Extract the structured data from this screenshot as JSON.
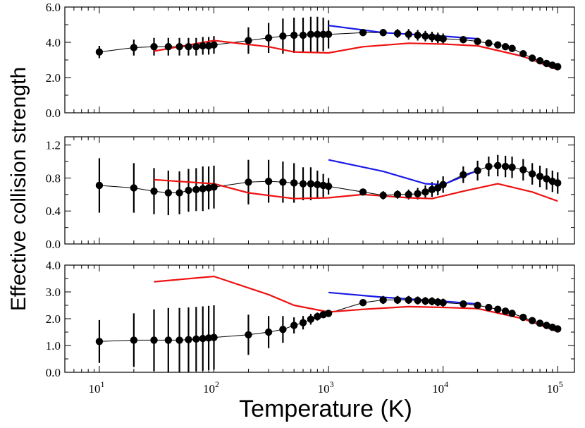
{
  "chart_data": {
    "type": "scatter",
    "shared_x": {
      "label": "Temperature (K)",
      "scale": "log",
      "range": [
        5,
        140000
      ],
      "tick_labels": [
        {
          "base": "10",
          "exp": "1",
          "value": 10
        },
        {
          "base": "10",
          "exp": "2",
          "value": 100
        },
        {
          "base": "10",
          "exp": "3",
          "value": 1000
        },
        {
          "base": "10",
          "exp": "4",
          "value": 10000
        },
        {
          "base": "10",
          "exp": "5",
          "value": 100000
        }
      ]
    },
    "shared_y_label": "Effective collision strength",
    "colors": {
      "points": "#000000",
      "red": "#ee1111",
      "blue": "#1a1ae6"
    },
    "panels": [
      {
        "name": "top",
        "ylim": [
          0,
          6
        ],
        "yticks": [
          0,
          2,
          4,
          6
        ],
        "ytick_labels": [
          "0.0",
          "2.0",
          "4.0",
          "6.0"
        ],
        "points": [
          {
            "x": 10,
            "y": 3.45,
            "err": 0.35
          },
          {
            "x": 20,
            "y": 3.7,
            "err": 0.45
          },
          {
            "x": 30,
            "y": 3.75,
            "err": 0.5
          },
          {
            "x": 40,
            "y": 3.75,
            "err": 0.5
          },
          {
            "x": 50,
            "y": 3.75,
            "err": 0.5
          },
          {
            "x": 60,
            "y": 3.75,
            "err": 0.5
          },
          {
            "x": 70,
            "y": 3.75,
            "err": 0.5
          },
          {
            "x": 80,
            "y": 3.8,
            "err": 0.5
          },
          {
            "x": 90,
            "y": 3.8,
            "err": 0.5
          },
          {
            "x": 100,
            "y": 3.85,
            "err": 0.5
          },
          {
            "x": 200,
            "y": 4.1,
            "err": 0.75
          },
          {
            "x": 300,
            "y": 4.25,
            "err": 0.85
          },
          {
            "x": 400,
            "y": 4.35,
            "err": 1.0
          },
          {
            "x": 500,
            "y": 4.4,
            "err": 1.0
          },
          {
            "x": 600,
            "y": 4.4,
            "err": 1.0
          },
          {
            "x": 700,
            "y": 4.45,
            "err": 1.0
          },
          {
            "x": 800,
            "y": 4.45,
            "err": 1.0
          },
          {
            "x": 900,
            "y": 4.45,
            "err": 0.95
          },
          {
            "x": 1000,
            "y": 4.45,
            "err": 0.8
          },
          {
            "x": 2000,
            "y": 4.55,
            "err": 0.15
          },
          {
            "x": 3000,
            "y": 4.55,
            "err": 0.2
          },
          {
            "x": 4000,
            "y": 4.5,
            "err": 0.25
          },
          {
            "x": 5000,
            "y": 4.45,
            "err": 0.3
          },
          {
            "x": 6000,
            "y": 4.4,
            "err": 0.3
          },
          {
            "x": 7000,
            "y": 4.35,
            "err": 0.3
          },
          {
            "x": 8000,
            "y": 4.3,
            "err": 0.3
          },
          {
            "x": 9000,
            "y": 4.25,
            "err": 0.3
          },
          {
            "x": 10000,
            "y": 4.2,
            "err": 0.3
          },
          {
            "x": 15000,
            "y": 4.15,
            "err": 0.2
          },
          {
            "x": 20000,
            "y": 4.05,
            "err": 0.1
          },
          {
            "x": 25000,
            "y": 3.95,
            "err": 0
          },
          {
            "x": 30000,
            "y": 3.85,
            "err": 0
          },
          {
            "x": 35000,
            "y": 3.75,
            "err": 0
          },
          {
            "x": 40000,
            "y": 3.65,
            "err": 0
          },
          {
            "x": 50000,
            "y": 3.35,
            "err": 0
          },
          {
            "x": 60000,
            "y": 3.1,
            "err": 0
          },
          {
            "x": 70000,
            "y": 2.95,
            "err": 0
          },
          {
            "x": 80000,
            "y": 2.8,
            "err": 0
          },
          {
            "x": 90000,
            "y": 2.7,
            "err": 0
          },
          {
            "x": 100000,
            "y": 2.62,
            "err": 0
          }
        ],
        "red": [
          [
            30,
            3.5
          ],
          [
            100,
            4.1
          ],
          [
            300,
            3.75
          ],
          [
            500,
            3.45
          ],
          [
            1000,
            3.4
          ],
          [
            2000,
            3.75
          ],
          [
            5000,
            3.95
          ],
          [
            10000,
            3.9
          ],
          [
            20000,
            3.8
          ],
          [
            50000,
            3.2
          ],
          [
            100000,
            2.45
          ]
        ],
        "blue": [
          [
            1000,
            4.95
          ],
          [
            3000,
            4.55
          ],
          [
            10000,
            4.35
          ],
          [
            20000,
            4.2
          ]
        ]
      },
      {
        "name": "middle",
        "ylim": [
          0,
          1.3
        ],
        "yticks": [
          0,
          0.4,
          0.8,
          1.2
        ],
        "ytick_labels": [
          "0.0",
          "0.4",
          "0.8",
          "1.2"
        ],
        "points": [
          {
            "x": 10,
            "y": 0.71,
            "err": 0.33
          },
          {
            "x": 20,
            "y": 0.68,
            "err": 0.3
          },
          {
            "x": 30,
            "y": 0.64,
            "err": 0.28
          },
          {
            "x": 40,
            "y": 0.62,
            "err": 0.27
          },
          {
            "x": 50,
            "y": 0.62,
            "err": 0.26
          },
          {
            "x": 60,
            "y": 0.65,
            "err": 0.26
          },
          {
            "x": 70,
            "y": 0.66,
            "err": 0.26
          },
          {
            "x": 80,
            "y": 0.67,
            "err": 0.27
          },
          {
            "x": 90,
            "y": 0.68,
            "err": 0.26
          },
          {
            "x": 100,
            "y": 0.69,
            "err": 0.26
          },
          {
            "x": 200,
            "y": 0.75,
            "err": 0.27
          },
          {
            "x": 300,
            "y": 0.76,
            "err": 0.26
          },
          {
            "x": 400,
            "y": 0.75,
            "err": 0.25
          },
          {
            "x": 500,
            "y": 0.74,
            "err": 0.24
          },
          {
            "x": 600,
            "y": 0.73,
            "err": 0.2
          },
          {
            "x": 700,
            "y": 0.73,
            "err": 0.2
          },
          {
            "x": 800,
            "y": 0.72,
            "err": 0.17
          },
          {
            "x": 900,
            "y": 0.71,
            "err": 0.14
          },
          {
            "x": 1000,
            "y": 0.7,
            "err": 0.1
          },
          {
            "x": 2000,
            "y": 0.63,
            "err": 0.04
          },
          {
            "x": 3000,
            "y": 0.59,
            "err": 0.05
          },
          {
            "x": 4000,
            "y": 0.6,
            "err": 0.05
          },
          {
            "x": 5000,
            "y": 0.6,
            "err": 0.06
          },
          {
            "x": 6000,
            "y": 0.61,
            "err": 0.07
          },
          {
            "x": 7000,
            "y": 0.63,
            "err": 0.08
          },
          {
            "x": 8000,
            "y": 0.66,
            "err": 0.09
          },
          {
            "x": 9000,
            "y": 0.68,
            "err": 0.09
          },
          {
            "x": 10000,
            "y": 0.72,
            "err": 0.1
          },
          {
            "x": 15000,
            "y": 0.84,
            "err": 0.1
          },
          {
            "x": 20000,
            "y": 0.89,
            "err": 0.12
          },
          {
            "x": 25000,
            "y": 0.94,
            "err": 0.12
          },
          {
            "x": 30000,
            "y": 0.95,
            "err": 0.13
          },
          {
            "x": 35000,
            "y": 0.94,
            "err": 0.13
          },
          {
            "x": 40000,
            "y": 0.93,
            "err": 0.13
          },
          {
            "x": 50000,
            "y": 0.9,
            "err": 0.13
          },
          {
            "x": 60000,
            "y": 0.85,
            "err": 0.13
          },
          {
            "x": 70000,
            "y": 0.82,
            "err": 0.13
          },
          {
            "x": 80000,
            "y": 0.79,
            "err": 0.13
          },
          {
            "x": 90000,
            "y": 0.76,
            "err": 0.13
          },
          {
            "x": 100000,
            "y": 0.74,
            "err": 0.13
          }
        ],
        "red": [
          [
            30,
            0.78
          ],
          [
            100,
            0.73
          ],
          [
            200,
            0.62
          ],
          [
            500,
            0.55
          ],
          [
            1000,
            0.56
          ],
          [
            2000,
            0.6
          ],
          [
            5000,
            0.56
          ],
          [
            8000,
            0.55
          ],
          [
            15000,
            0.64
          ],
          [
            30000,
            0.73
          ],
          [
            60000,
            0.63
          ],
          [
            100000,
            0.52
          ]
        ],
        "blue": [
          [
            1000,
            1.02
          ],
          [
            3000,
            0.88
          ],
          [
            7000,
            0.73
          ],
          [
            10000,
            0.72
          ],
          [
            20000,
            0.89
          ]
        ]
      },
      {
        "name": "bottom",
        "ylim": [
          0,
          4
        ],
        "yticks": [
          0,
          1,
          2,
          3,
          4
        ],
        "ytick_labels": [
          "0.0",
          "1.0",
          "2.0",
          "3.0",
          "4.0"
        ],
        "points": [
          {
            "x": 10,
            "y": 1.15,
            "err": 0.8
          },
          {
            "x": 20,
            "y": 1.2,
            "err": 1.0
          },
          {
            "x": 30,
            "y": 1.2,
            "err": 1.15
          },
          {
            "x": 40,
            "y": 1.2,
            "err": 1.2
          },
          {
            "x": 50,
            "y": 1.2,
            "err": 1.2
          },
          {
            "x": 60,
            "y": 1.22,
            "err": 1.2
          },
          {
            "x": 70,
            "y": 1.24,
            "err": 1.2
          },
          {
            "x": 80,
            "y": 1.26,
            "err": 1.2
          },
          {
            "x": 90,
            "y": 1.28,
            "err": 1.2
          },
          {
            "x": 100,
            "y": 1.3,
            "err": 1.2
          },
          {
            "x": 200,
            "y": 1.4,
            "err": 0.75
          },
          {
            "x": 300,
            "y": 1.5,
            "err": 0.6
          },
          {
            "x": 400,
            "y": 1.6,
            "err": 0.5
          },
          {
            "x": 500,
            "y": 1.75,
            "err": 0.3
          },
          {
            "x": 600,
            "y": 1.85,
            "err": 0.25
          },
          {
            "x": 700,
            "y": 1.98,
            "err": 0.2
          },
          {
            "x": 800,
            "y": 2.08,
            "err": 0.15
          },
          {
            "x": 900,
            "y": 2.15,
            "err": 0.12
          },
          {
            "x": 1000,
            "y": 2.2,
            "err": 0.1
          },
          {
            "x": 2000,
            "y": 2.6,
            "err": 0.1
          },
          {
            "x": 3000,
            "y": 2.7,
            "err": 0.15
          },
          {
            "x": 4000,
            "y": 2.7,
            "err": 0.15
          },
          {
            "x": 5000,
            "y": 2.7,
            "err": 0.15
          },
          {
            "x": 6000,
            "y": 2.68,
            "err": 0.15
          },
          {
            "x": 7000,
            "y": 2.66,
            "err": 0.15
          },
          {
            "x": 8000,
            "y": 2.65,
            "err": 0.15
          },
          {
            "x": 9000,
            "y": 2.62,
            "err": 0.15
          },
          {
            "x": 10000,
            "y": 2.6,
            "err": 0.15
          },
          {
            "x": 15000,
            "y": 2.55,
            "err": 0.1
          },
          {
            "x": 20000,
            "y": 2.5,
            "err": 0.05
          },
          {
            "x": 25000,
            "y": 2.42,
            "err": 0
          },
          {
            "x": 30000,
            "y": 2.35,
            "err": 0
          },
          {
            "x": 35000,
            "y": 2.28,
            "err": 0
          },
          {
            "x": 40000,
            "y": 2.2,
            "err": 0
          },
          {
            "x": 50000,
            "y": 2.05,
            "err": 0
          },
          {
            "x": 60000,
            "y": 1.93,
            "err": 0
          },
          {
            "x": 70000,
            "y": 1.83,
            "err": 0
          },
          {
            "x": 80000,
            "y": 1.75,
            "err": 0
          },
          {
            "x": 90000,
            "y": 1.68,
            "err": 0
          },
          {
            "x": 100000,
            "y": 1.62,
            "err": 0
          }
        ],
        "red": [
          [
            30,
            3.38
          ],
          [
            100,
            3.58
          ],
          [
            300,
            2.9
          ],
          [
            500,
            2.5
          ],
          [
            1000,
            2.25
          ],
          [
            2000,
            2.35
          ],
          [
            5000,
            2.45
          ],
          [
            10000,
            2.42
          ],
          [
            20000,
            2.38
          ],
          [
            50000,
            2.0
          ],
          [
            100000,
            1.52
          ]
        ],
        "blue": [
          [
            1000,
            2.98
          ],
          [
            3000,
            2.8
          ],
          [
            10000,
            2.65
          ],
          [
            20000,
            2.55
          ]
        ]
      }
    ]
  }
}
